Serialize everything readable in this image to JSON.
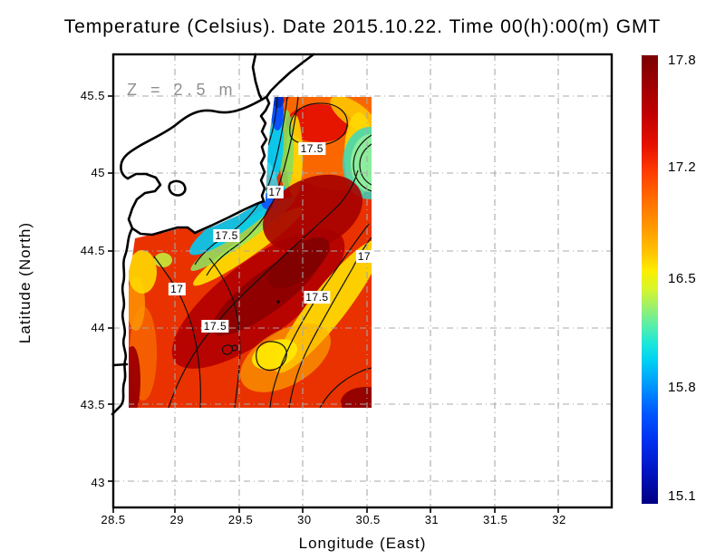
{
  "title": "Temperature (Celsius). Date 2015.10.22. Time 00(h):00(m) GMT",
  "plot": {
    "xlabel": "Longitude (East)",
    "ylabel": "Latitude (North)",
    "annotation": "Z = 2.5 m"
  },
  "chart_data": {
    "type": "heatmap",
    "title": "Temperature (Celsius). Date 2015.10.22. Time 00(h):00(m) GMT",
    "variable": "Sea water temperature at depth Z = 2.5 m",
    "units": "Celsius",
    "xlabel": "Longitude (East)",
    "ylabel": "Latitude (North)",
    "annotation": "Z = 2.5 m",
    "xlim": [
      28.5,
      32.4
    ],
    "ylim": [
      42.8,
      45.76
    ],
    "xticks": [
      "28.5",
      "29",
      "29.5",
      "30",
      "30.5",
      "31",
      "31.5",
      "32"
    ],
    "yticks": [
      "45.5",
      "45",
      "44.5",
      "44",
      "43.5",
      "43"
    ],
    "grid": true,
    "grid_style": "gray dash-dot",
    "colorbar": {
      "position": "right",
      "min": 15.1,
      "max": 17.8,
      "ticks": [
        "17.8",
        "17.2",
        "16.5",
        "15.8",
        "15.1"
      ],
      "colormap": "jet (dark blue -> cyan -> green -> yellow -> orange -> red -> dark red)"
    },
    "data_extent": {
      "lon": [
        28.6,
        30.55
      ],
      "lat": [
        43.45,
        45.5
      ]
    },
    "contour_levels": [
      17,
      17.5
    ],
    "contour_labels": [
      {
        "value": "17.5",
        "lon": 30.06,
        "lat": 45.16
      },
      {
        "value": "17",
        "lon": 29.77,
        "lat": 44.88
      },
      {
        "value": "17.5",
        "lon": 29.39,
        "lat": 44.6
      },
      {
        "value": "17",
        "lon": 30.47,
        "lat": 44.46
      },
      {
        "value": "17",
        "lon": 29.0,
        "lat": 44.25
      },
      {
        "value": "17.5",
        "lon": 30.1,
        "lat": 44.2
      },
      {
        "value": "17.5",
        "lon": 29.3,
        "lat": 44.01
      }
    ],
    "features_summary": [
      "Warm band (>17.5 C, dark red) oriented SW-NE across the center of the data field",
      "Cold coastal upwelling strip (15.1-16.5 C, blue/cyan) along the northwest coast near the Danube delta",
      "Cooler green patch (~16.5 C) at the eastern edge of the data near 45.2 N",
      "Yellow (~17 C) band along the southeastern flank and a yellow oval near 44.05 N, 29.85 E",
      "Temperature shown over sea points only; land and area outside the model domain are white"
    ]
  },
  "colors": {
    "grid": "#a8a8a8",
    "coast": "#000000",
    "contour": "#111111",
    "annotation_gray": "#8f8f8f",
    "cbar_top": "#7b0000",
    "cbar_bottom": "#000083"
  }
}
